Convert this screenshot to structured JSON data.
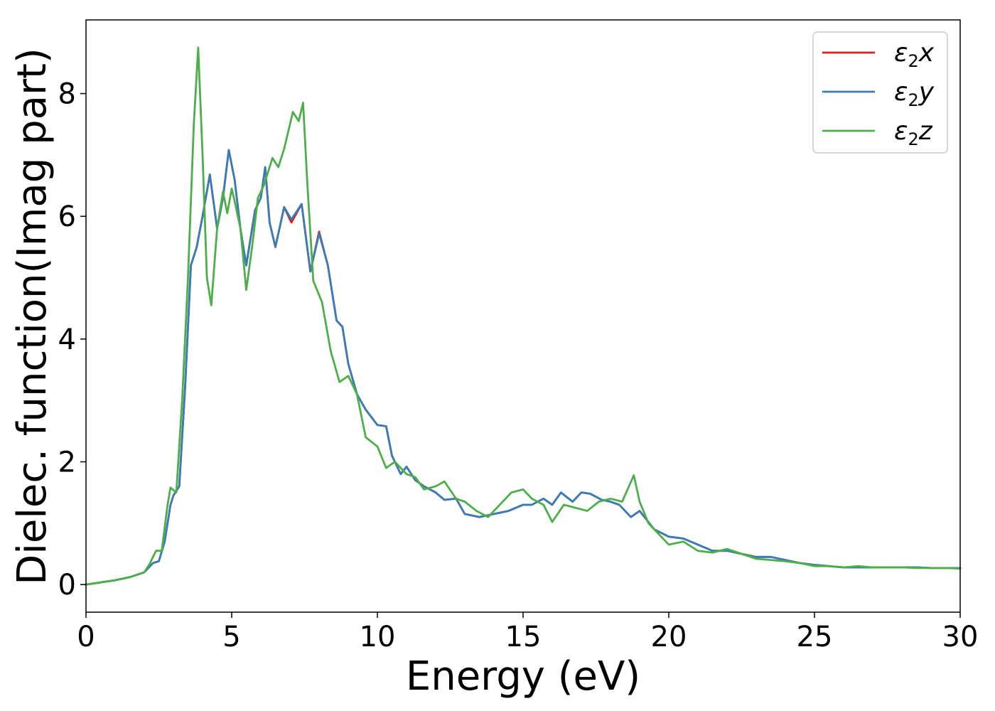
{
  "chart_data": {
    "type": "line",
    "title": "",
    "xlabel": "Energy (eV)",
    "ylabel": "Dielec. function(Imag part)",
    "xlim": [
      0,
      30
    ],
    "ylim": [
      -0.45,
      9.2
    ],
    "xticks": [
      0,
      5,
      10,
      15,
      20,
      25,
      30
    ],
    "yticks": [
      0,
      2,
      4,
      6,
      8
    ],
    "grid": false,
    "legend_position": "top-right",
    "series": [
      {
        "name": "ε2x",
        "legend_base": "ε",
        "legend_sub": "2",
        "legend_suffix": "x",
        "color": "#e41a1c",
        "x": [
          0,
          1,
          1.5,
          2,
          2.3,
          2.5,
          2.7,
          2.9,
          3.0,
          3.2,
          3.4,
          3.6,
          3.8,
          4.0,
          4.25,
          4.5,
          4.7,
          4.9,
          5.1,
          5.3,
          5.5,
          5.6,
          5.8,
          6.0,
          6.15,
          6.3,
          6.5,
          6.8,
          7.05,
          7.4,
          7.7,
          8.0,
          8.3,
          8.6,
          8.8,
          9.0,
          9.3,
          9.6,
          10.0,
          10.3,
          10.5,
          10.8,
          11.0,
          11.3,
          11.6,
          12.0,
          12.3,
          12.7,
          13.0,
          13.5,
          14.0,
          14.5,
          15.0,
          15.3,
          15.7,
          16.0,
          16.3,
          16.7,
          17.0,
          17.3,
          17.7,
          18.0,
          18.3,
          18.7,
          19.0,
          19.5,
          20.0,
          20.5,
          21.0,
          21.5,
          22.0,
          22.5,
          23.0,
          23.5,
          24.0,
          24.5,
          25.0,
          25.5,
          26.0,
          26.5,
          27.0,
          27.5,
          28.0,
          28.5,
          29.0,
          29.5,
          30.0
        ],
        "y": [
          0,
          0.07,
          0.12,
          0.2,
          0.35,
          0.38,
          0.7,
          1.3,
          1.45,
          1.6,
          3.2,
          5.2,
          5.5,
          6.0,
          6.68,
          5.8,
          6.3,
          7.08,
          6.6,
          5.8,
          5.2,
          5.5,
          6.1,
          6.3,
          6.8,
          5.9,
          5.5,
          6.15,
          5.9,
          6.2,
          5.1,
          5.75,
          5.2,
          4.3,
          4.2,
          3.6,
          3.1,
          2.85,
          2.6,
          2.58,
          2.1,
          1.8,
          1.92,
          1.7,
          1.6,
          1.5,
          1.38,
          1.4,
          1.15,
          1.1,
          1.15,
          1.2,
          1.3,
          1.3,
          1.4,
          1.3,
          1.5,
          1.35,
          1.5,
          1.48,
          1.38,
          1.35,
          1.3,
          1.1,
          1.2,
          0.9,
          0.78,
          0.75,
          0.65,
          0.55,
          0.55,
          0.5,
          0.45,
          0.45,
          0.4,
          0.35,
          0.32,
          0.3,
          0.28,
          0.28,
          0.28,
          0.28,
          0.28,
          0.28,
          0.27,
          0.27,
          0.27
        ]
      },
      {
        "name": "ε2y",
        "legend_base": "ε",
        "legend_sub": "2",
        "legend_suffix": "y",
        "color": "#377eb8",
        "x": [
          0,
          1,
          1.5,
          2,
          2.3,
          2.5,
          2.7,
          2.9,
          3.0,
          3.2,
          3.4,
          3.6,
          3.8,
          4.0,
          4.25,
          4.5,
          4.7,
          4.9,
          5.1,
          5.3,
          5.5,
          5.6,
          5.8,
          6.0,
          6.15,
          6.3,
          6.5,
          6.8,
          7.05,
          7.4,
          7.7,
          8.0,
          8.3,
          8.6,
          8.8,
          9.0,
          9.3,
          9.6,
          10.0,
          10.3,
          10.5,
          10.8,
          11.0,
          11.3,
          11.6,
          12.0,
          12.3,
          12.7,
          13.0,
          13.5,
          14.0,
          14.5,
          15.0,
          15.3,
          15.7,
          16.0,
          16.3,
          16.7,
          17.0,
          17.3,
          17.7,
          18.0,
          18.3,
          18.7,
          19.0,
          19.5,
          20.0,
          20.5,
          21.0,
          21.5,
          22.0,
          22.5,
          23.0,
          23.5,
          24.0,
          24.5,
          25.0,
          25.5,
          26.0,
          26.5,
          27.0,
          27.5,
          28.0,
          28.5,
          29.0,
          29.5,
          30.0
        ],
        "y": [
          0,
          0.07,
          0.12,
          0.2,
          0.35,
          0.38,
          0.7,
          1.3,
          1.45,
          1.6,
          3.2,
          5.2,
          5.5,
          6.0,
          6.68,
          5.8,
          6.3,
          7.08,
          6.6,
          5.8,
          5.2,
          5.5,
          6.1,
          6.3,
          6.8,
          5.9,
          5.5,
          6.15,
          5.95,
          6.2,
          5.1,
          5.72,
          5.2,
          4.3,
          4.2,
          3.6,
          3.1,
          2.85,
          2.6,
          2.58,
          2.1,
          1.8,
          1.92,
          1.7,
          1.6,
          1.5,
          1.38,
          1.4,
          1.15,
          1.1,
          1.15,
          1.2,
          1.3,
          1.3,
          1.4,
          1.3,
          1.5,
          1.35,
          1.5,
          1.48,
          1.38,
          1.35,
          1.3,
          1.1,
          1.2,
          0.9,
          0.78,
          0.75,
          0.65,
          0.55,
          0.55,
          0.5,
          0.45,
          0.45,
          0.4,
          0.35,
          0.32,
          0.3,
          0.28,
          0.28,
          0.28,
          0.28,
          0.28,
          0.28,
          0.27,
          0.27,
          0.27
        ]
      },
      {
        "name": "ε2z",
        "legend_base": "ε",
        "legend_sub": "2",
        "legend_suffix": "z",
        "color": "#4daf4a",
        "x": [
          0,
          1,
          1.5,
          2,
          2.2,
          2.4,
          2.6,
          2.8,
          2.9,
          3.1,
          3.3,
          3.5,
          3.7,
          3.85,
          4.0,
          4.15,
          4.3,
          4.5,
          4.7,
          4.85,
          5.0,
          5.1,
          5.3,
          5.5,
          5.7,
          5.9,
          6.1,
          6.4,
          6.6,
          6.8,
          7.1,
          7.3,
          7.45,
          7.6,
          7.8,
          8.1,
          8.4,
          8.7,
          9.0,
          9.3,
          9.6,
          10.0,
          10.3,
          10.6,
          11.0,
          11.3,
          11.6,
          12.0,
          12.3,
          12.7,
          13.0,
          13.4,
          13.8,
          14.2,
          14.6,
          15.0,
          15.3,
          15.7,
          16.0,
          16.4,
          16.8,
          17.2,
          17.6,
          18.0,
          18.4,
          18.8,
          19.0,
          19.3,
          19.6,
          20.0,
          20.5,
          21.0,
          21.5,
          22.0,
          22.5,
          23.0,
          23.5,
          24.0,
          24.5,
          25.0,
          25.5,
          26.0,
          26.5,
          27.0,
          27.5,
          28.0,
          28.5,
          29.0,
          29.5,
          30.0
        ],
        "y": [
          0,
          0.07,
          0.12,
          0.2,
          0.35,
          0.55,
          0.55,
          1.3,
          1.58,
          1.5,
          3.0,
          5.0,
          7.5,
          8.75,
          7.0,
          5.0,
          4.55,
          5.8,
          6.4,
          6.05,
          6.45,
          6.25,
          5.8,
          4.8,
          5.5,
          6.3,
          6.5,
          6.95,
          6.8,
          7.1,
          7.7,
          7.55,
          7.85,
          6.5,
          4.95,
          4.6,
          3.8,
          3.3,
          3.4,
          3.1,
          2.4,
          2.25,
          1.9,
          2.0,
          1.8,
          1.75,
          1.55,
          1.6,
          1.68,
          1.4,
          1.35,
          1.2,
          1.1,
          1.3,
          1.5,
          1.55,
          1.4,
          1.3,
          1.02,
          1.3,
          1.25,
          1.2,
          1.35,
          1.4,
          1.35,
          1.78,
          1.35,
          1.0,
          0.85,
          0.65,
          0.7,
          0.55,
          0.52,
          0.58,
          0.5,
          0.42,
          0.4,
          0.38,
          0.35,
          0.3,
          0.3,
          0.28,
          0.3,
          0.28,
          0.28,
          0.28,
          0.27,
          0.27,
          0.27,
          0.26
        ]
      }
    ]
  }
}
